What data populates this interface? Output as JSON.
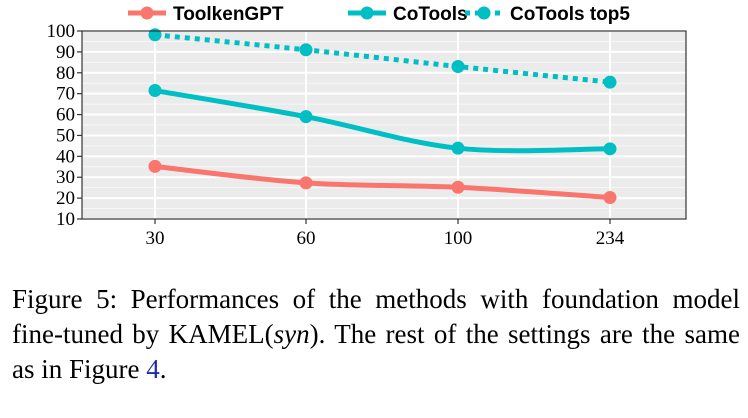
{
  "chart_data": {
    "type": "line",
    "categories": [
      "30",
      "60",
      "100",
      "234"
    ],
    "ylim": [
      10,
      100
    ],
    "yticks": [
      10,
      20,
      30,
      40,
      50,
      60,
      70,
      80,
      90,
      100
    ],
    "grid": true,
    "legend_position": "top",
    "series": [
      {
        "name": "ToolkenGPT",
        "values": [
          35.2,
          27.3,
          25.2,
          20.3
        ],
        "color": "#f8766d",
        "dash": "solid"
      },
      {
        "name": "CoTools",
        "values": [
          71.5,
          59.0,
          43.9,
          43.6
        ],
        "color": "#00bfc4",
        "dash": "solid"
      },
      {
        "name": "CoTools top5",
        "values": [
          98.2,
          91.0,
          83.0,
          75.5
        ],
        "color": "#00bfc4",
        "dash": "dotted"
      }
    ],
    "plot_background": "#ebebeb"
  },
  "caption": {
    "prefix": "Figure 5: Performances of the methods with foundation model fine-tuned by KAMEL(",
    "italic": "syn",
    "middle": ").  The rest of the settings are the same as in Figure ",
    "ref": "4",
    "suffix": "."
  }
}
